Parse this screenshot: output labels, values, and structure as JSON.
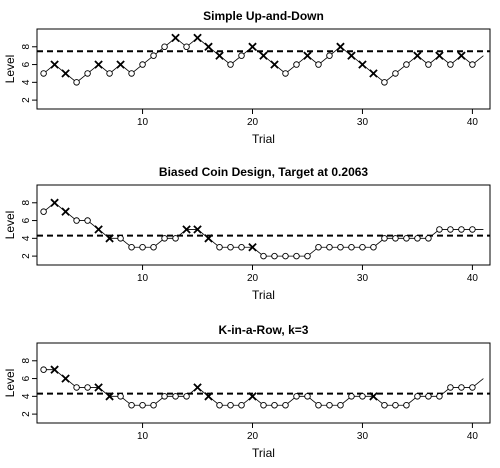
{
  "chart_data": [
    {
      "type": "line",
      "title": "Simple Up-and-Down",
      "xlabel": "Trial",
      "ylabel": "Level",
      "xlim": [
        0.4,
        41.6
      ],
      "ylim": [
        1,
        10
      ],
      "xticks": [
        10,
        20,
        30,
        40
      ],
      "yticks": [
        2,
        4,
        6,
        8
      ],
      "xtick_labels": [
        "10",
        "20",
        "30",
        "40"
      ],
      "ytick_labels": [
        "2",
        "4",
        "6",
        "8"
      ],
      "target": 7.5,
      "x": [
        1,
        2,
        3,
        4,
        5,
        6,
        7,
        8,
        9,
        10,
        11,
        12,
        13,
        14,
        15,
        16,
        17,
        18,
        19,
        20,
        21,
        22,
        23,
        24,
        25,
        26,
        27,
        28,
        29,
        30,
        31,
        32,
        33,
        34,
        35,
        36,
        37,
        38,
        39,
        40,
        41
      ],
      "values": [
        5,
        6,
        5,
        4,
        5,
        6,
        5,
        6,
        5,
        6,
        7,
        8,
        9,
        8,
        9,
        8,
        7,
        6,
        7,
        8,
        7,
        6,
        5,
        6,
        7,
        6,
        7,
        8,
        7,
        6,
        5,
        4,
        5,
        6,
        7,
        6,
        7,
        6,
        7,
        6,
        7
      ],
      "response": [
        0,
        1,
        1,
        0,
        0,
        1,
        0,
        1,
        0,
        0,
        0,
        0,
        1,
        0,
        1,
        1,
        1,
        0,
        0,
        1,
        1,
        1,
        0,
        0,
        1,
        0,
        0,
        1,
        1,
        1,
        1,
        0,
        0,
        0,
        1,
        0,
        1,
        0,
        1,
        0,
        null
      ]
    },
    {
      "type": "line",
      "title": "Biased Coin Design, Target at 0.2063",
      "xlabel": "Trial",
      "ylabel": "Level",
      "xlim": [
        0.4,
        41.6
      ],
      "ylim": [
        1,
        10
      ],
      "xticks": [
        10,
        20,
        30,
        40
      ],
      "yticks": [
        2,
        4,
        6,
        8
      ],
      "xtick_labels": [
        "10",
        "20",
        "30",
        "40"
      ],
      "ytick_labels": [
        "2",
        "4",
        "6",
        "8"
      ],
      "target": 4.3,
      "x": [
        1,
        2,
        3,
        4,
        5,
        6,
        7,
        8,
        9,
        10,
        11,
        12,
        13,
        14,
        15,
        16,
        17,
        18,
        19,
        20,
        21,
        22,
        23,
        24,
        25,
        26,
        27,
        28,
        29,
        30,
        31,
        32,
        33,
        34,
        35,
        36,
        37,
        38,
        39,
        40,
        41
      ],
      "values": [
        7,
        8,
        7,
        6,
        6,
        5,
        4,
        4,
        3,
        3,
        3,
        4,
        4,
        5,
        5,
        4,
        3,
        3,
        3,
        3,
        2,
        2,
        2,
        2,
        2,
        3,
        3,
        3,
        3,
        3,
        3,
        4,
        4,
        4,
        4,
        4,
        5,
        5,
        5,
        5,
        5
      ],
      "response": [
        0,
        1,
        1,
        0,
        0,
        1,
        1,
        0,
        0,
        0,
        0,
        0,
        0,
        1,
        1,
        1,
        0,
        0,
        0,
        1,
        0,
        0,
        0,
        0,
        0,
        0,
        0,
        0,
        0,
        0,
        0,
        0,
        0,
        0,
        0,
        0,
        0,
        0,
        0,
        0,
        null
      ]
    },
    {
      "type": "line",
      "title": "K-in-a-Row, k=3",
      "xlabel": "Trial",
      "ylabel": "Level",
      "xlim": [
        0.4,
        41.6
      ],
      "ylim": [
        1,
        10
      ],
      "xticks": [
        10,
        20,
        30,
        40
      ],
      "yticks": [
        2,
        4,
        6,
        8
      ],
      "xtick_labels": [
        "10",
        "20",
        "30",
        "40"
      ],
      "ytick_labels": [
        "2",
        "4",
        "6",
        "8"
      ],
      "target": 4.3,
      "x": [
        1,
        2,
        3,
        4,
        5,
        6,
        7,
        8,
        9,
        10,
        11,
        12,
        13,
        14,
        15,
        16,
        17,
        18,
        19,
        20,
        21,
        22,
        23,
        24,
        25,
        26,
        27,
        28,
        29,
        30,
        31,
        32,
        33,
        34,
        35,
        36,
        37,
        38,
        39,
        40,
        41
      ],
      "values": [
        7,
        7,
        6,
        5,
        5,
        5,
        4,
        4,
        3,
        3,
        3,
        4,
        4,
        4,
        5,
        4,
        3,
        3,
        3,
        4,
        3,
        3,
        3,
        4,
        4,
        3,
        3,
        3,
        4,
        4,
        4,
        3,
        3,
        3,
        4,
        4,
        4,
        5,
        5,
        5,
        6
      ],
      "response": [
        0,
        1,
        1,
        0,
        0,
        1,
        1,
        0,
        0,
        0,
        0,
        0,
        0,
        0,
        1,
        1,
        0,
        0,
        0,
        1,
        0,
        0,
        0,
        0,
        0,
        0,
        0,
        0,
        0,
        0,
        1,
        0,
        0,
        0,
        0,
        0,
        0,
        0,
        0,
        0,
        null
      ]
    }
  ]
}
